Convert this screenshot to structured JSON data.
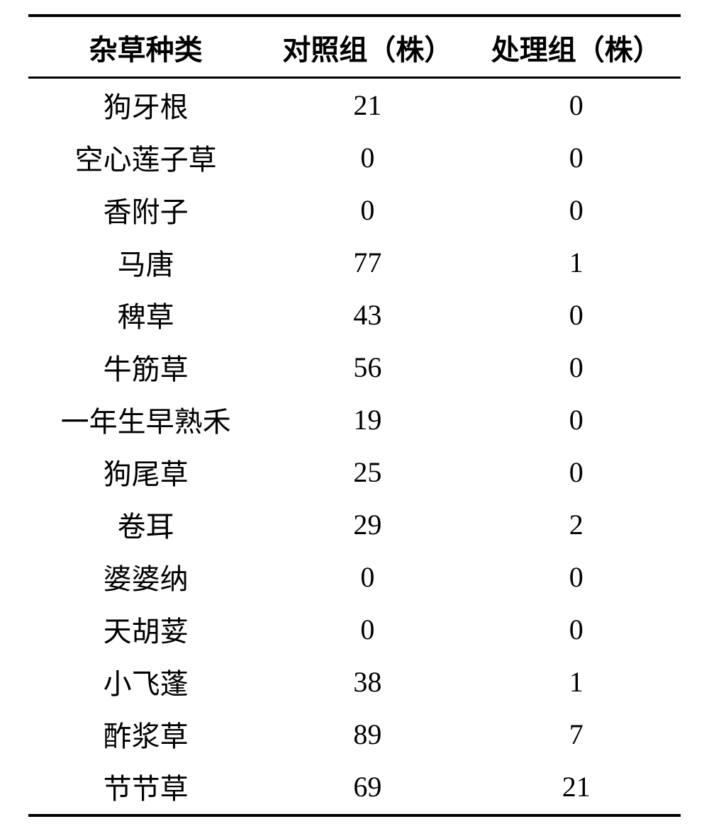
{
  "table": {
    "type": "table",
    "background_color": "#ffffff",
    "border_color": "#000000",
    "border_top_width": 4,
    "header_border_bottom_width": 3,
    "border_bottom_width": 4,
    "font_family": "SimSun",
    "header_fontsize": 40,
    "header_fontweight": "bold",
    "cell_fontsize": 40,
    "text_color": "#000000",
    "column_widths_pct": [
      36,
      32,
      32
    ],
    "columns": [
      "杂草种类",
      "对照组（株）",
      "处理组（株）"
    ],
    "rows": [
      {
        "species": "狗牙根",
        "control": "21",
        "treatment": "0"
      },
      {
        "species": "空心莲子草",
        "control": "0",
        "treatment": "0"
      },
      {
        "species": "香附子",
        "control": "0",
        "treatment": "0"
      },
      {
        "species": "马唐",
        "control": "77",
        "treatment": "1"
      },
      {
        "species": "稗草",
        "control": "43",
        "treatment": "0"
      },
      {
        "species": "牛筋草",
        "control": "56",
        "treatment": "0"
      },
      {
        "species": "一年生早熟禾",
        "control": "19",
        "treatment": "0"
      },
      {
        "species": "狗尾草",
        "control": "25",
        "treatment": "0"
      },
      {
        "species": "卷耳",
        "control": "29",
        "treatment": "2"
      },
      {
        "species": "婆婆纳",
        "control": "0",
        "treatment": "0"
      },
      {
        "species": "天胡荽",
        "control": "0",
        "treatment": "0"
      },
      {
        "species": "小飞蓬",
        "control": "38",
        "treatment": "1"
      },
      {
        "species": "酢浆草",
        "control": "89",
        "treatment": "7"
      },
      {
        "species": "节节草",
        "control": "69",
        "treatment": "21"
      }
    ]
  }
}
